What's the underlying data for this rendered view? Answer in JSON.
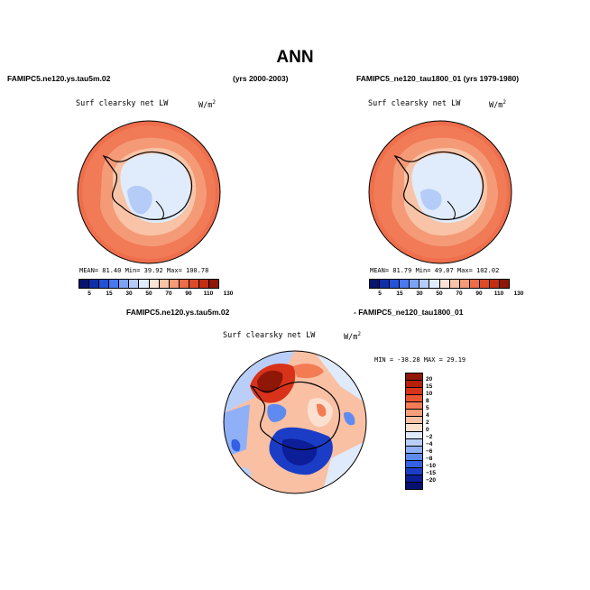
{
  "title": "ANN",
  "panel1": {
    "case": "FAMIPC5.ne120.ys.tau5m.02",
    "years": "(yrs 2000-2003)",
    "variable": "Surf clearsky net LW",
    "units": "W/m",
    "units_exp": "2",
    "stats": "MEAN=  81.40   Min=   39.92   Max= 100.78"
  },
  "panel2": {
    "case": "FAMIPC5_ne120_tau1800_01 (yrs 1979-1980)",
    "variable": "Surf clearsky net LW",
    "units": "W/m",
    "units_exp": "2",
    "stats": "MEAN=  81.79   Min=   49.07   Max= 102.02"
  },
  "diff": {
    "case_a": "FAMIPC5.ne120.ys.tau5m.02",
    "case_b": "- FAMIPC5_ne120_tau1800_01",
    "variable": "Surf clearsky net LW",
    "units": "W/m",
    "units_exp": "2",
    "stats": "MIN = -38.28  MAX =  29.19"
  },
  "colorbar_top": {
    "labels": [
      "5",
      "15",
      "30",
      "50",
      "70",
      "90",
      "110",
      "130"
    ],
    "colors": [
      "#08156e",
      "#0f2fa8",
      "#2452d6",
      "#4a78ee",
      "#7ea3f6",
      "#b6ccf8",
      "#e0ecfb",
      "#fbe3d6",
      "#f8c3a6",
      "#f49a76",
      "#ec6d4a",
      "#dd4a2a",
      "#c22e14",
      "#8f1708"
    ]
  },
  "colorbar_diff": {
    "labels": [
      "20",
      "15",
      "10",
      "8",
      "5",
      "4",
      "2",
      "0",
      "−2",
      "−4",
      "−6",
      "−8",
      "−10",
      "−15",
      "−20"
    ],
    "colors": [
      "#8f1708",
      "#b51f0c",
      "#d8321a",
      "#ea5632",
      "#f37c55",
      "#f79e7b",
      "#f9c0a4",
      "#fbe0d0",
      "#dfeafb",
      "#b9cff9",
      "#8fb0f6",
      "#5f8bf1",
      "#3360e4",
      "#1b3dc6",
      "#0c1f98",
      "#061170"
    ]
  }
}
